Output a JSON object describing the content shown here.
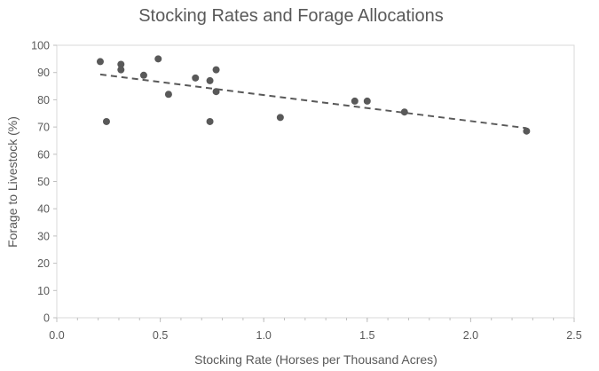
{
  "chart_data": {
    "type": "scatter",
    "title": "Stocking Rates and Forage Allocations",
    "xlabel": "Stocking Rate (Horses per Thousand Acres)",
    "ylabel": "Forage to Livestock (%)",
    "xlim": [
      0,
      2.5
    ],
    "ylim": [
      0,
      100
    ],
    "x_ticks": [
      0.0,
      0.5,
      1.0,
      1.5,
      2.0,
      2.5
    ],
    "x_tick_labels": [
      "0.0",
      "0.5",
      "1.0",
      "1.5",
      "2.0",
      "2.5"
    ],
    "y_ticks": [
      0,
      10,
      20,
      30,
      40,
      50,
      60,
      70,
      80,
      90,
      100
    ],
    "y_tick_labels": [
      "0",
      "10",
      "20",
      "30",
      "40",
      "50",
      "60",
      "70",
      "80",
      "90",
      "100"
    ],
    "grid": false,
    "legend": "none",
    "series": [
      {
        "points": [
          {
            "x": 0.21,
            "y": 94
          },
          {
            "x": 0.24,
            "y": 72
          },
          {
            "x": 0.31,
            "y": 93
          },
          {
            "x": 0.31,
            "y": 91
          },
          {
            "x": 0.42,
            "y": 89
          },
          {
            "x": 0.49,
            "y": 95
          },
          {
            "x": 0.54,
            "y": 82
          },
          {
            "x": 0.67,
            "y": 88
          },
          {
            "x": 0.74,
            "y": 87
          },
          {
            "x": 0.74,
            "y": 72
          },
          {
            "x": 0.77,
            "y": 91
          },
          {
            "x": 0.77,
            "y": 83
          },
          {
            "x": 1.08,
            "y": 73.5
          },
          {
            "x": 1.44,
            "y": 79.5
          },
          {
            "x": 1.5,
            "y": 79.5
          },
          {
            "x": 1.68,
            "y": 75.5
          },
          {
            "x": 2.27,
            "y": 68.5
          }
        ]
      }
    ],
    "trendline": {
      "style": "dashed",
      "points": [
        {
          "x": 0.21,
          "y": 89.3
        },
        {
          "x": 2.27,
          "y": 69.6
        }
      ]
    },
    "colors": {
      "marker": "#595959",
      "trendline": "#595959",
      "axis": "#bfbfbf",
      "text": "#595959"
    }
  }
}
